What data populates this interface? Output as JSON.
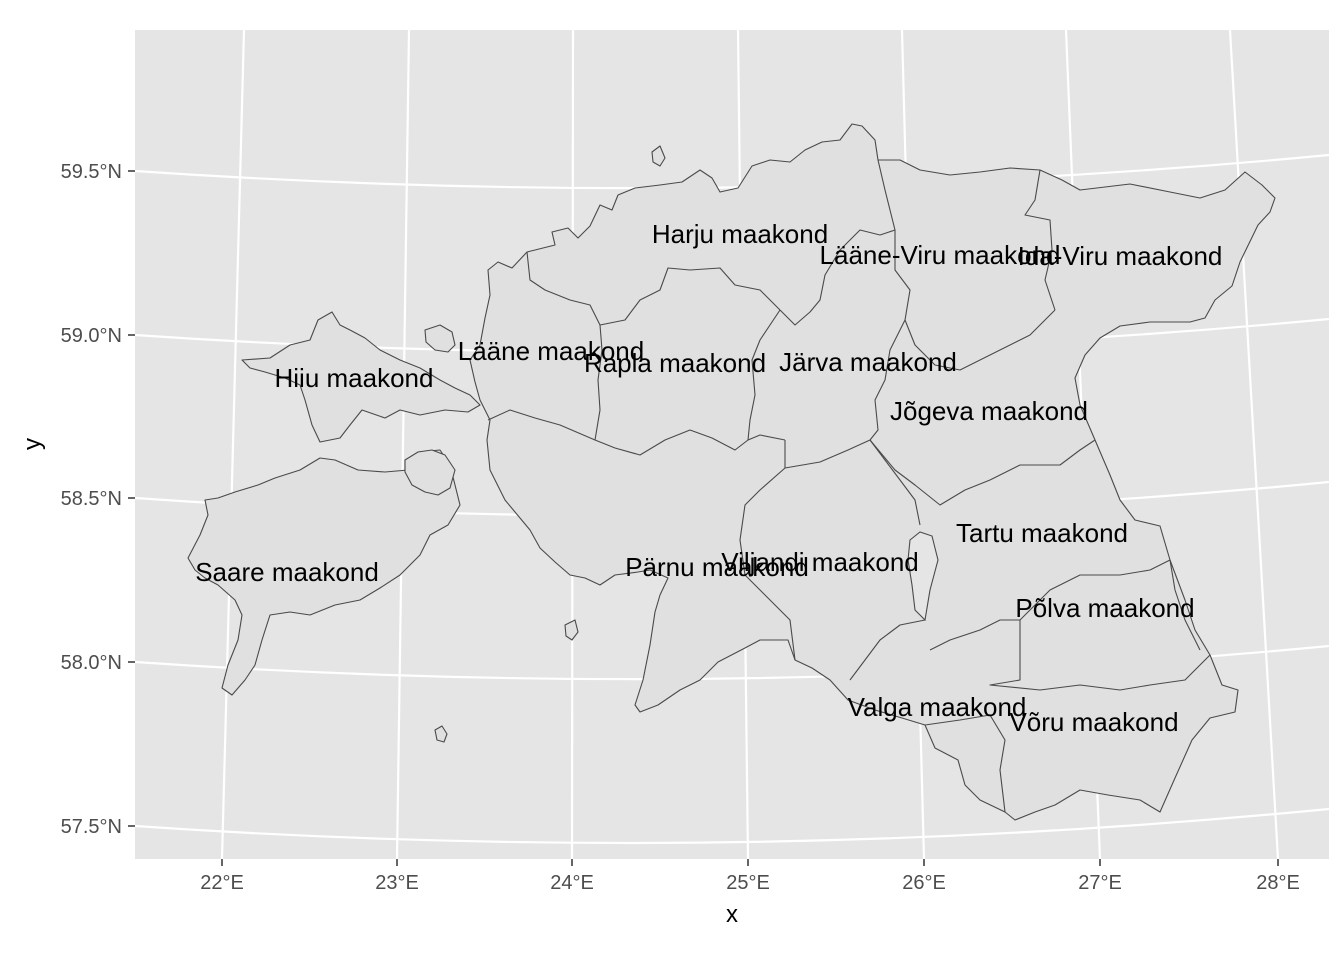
{
  "map": {
    "axes": {
      "x_title": "x",
      "y_title": "y",
      "x_ticks": [
        "22°E",
        "23°E",
        "24°E",
        "25°E",
        "26°E",
        "27°E",
        "28°E"
      ],
      "y_ticks": [
        "59.5°N",
        "59.0°N",
        "58.5°N",
        "58.0°N",
        "57.5°N"
      ]
    },
    "colors": {
      "panel_background": "#e5e5e5",
      "gridline": "#ffffff",
      "region_fill": "#e0e0e0",
      "region_border": "#4a4a4a"
    },
    "regions": [
      {
        "id": "harju",
        "label": "Harju maakond"
      },
      {
        "id": "laane-viru",
        "label": "Lääne-Viru maakond"
      },
      {
        "id": "ida-viru",
        "label": "Ida-Viru maakond"
      },
      {
        "id": "laane",
        "label": "Lääne maakond"
      },
      {
        "id": "rapla",
        "label": "Rapla maakond"
      },
      {
        "id": "jarva",
        "label": "Järva maakond"
      },
      {
        "id": "hiiu",
        "label": "Hiiu maakond"
      },
      {
        "id": "jogeva",
        "label": "Jõgeva maakond"
      },
      {
        "id": "tartu",
        "label": "Tartu maakond"
      },
      {
        "id": "saare",
        "label": "Saare maakond"
      },
      {
        "id": "parnu",
        "label": "Pärnu maakond"
      },
      {
        "id": "viljandi",
        "label": "Viljandi maakond"
      },
      {
        "id": "polva",
        "label": "Põlva maakond"
      },
      {
        "id": "valga",
        "label": "Valga maakond"
      },
      {
        "id": "voru",
        "label": "Võru maakond"
      }
    ]
  }
}
